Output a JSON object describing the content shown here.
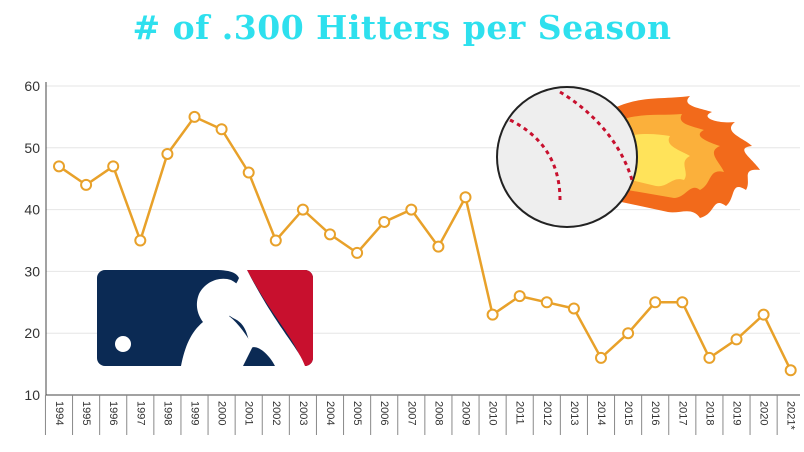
{
  "chart_data": {
    "type": "line",
    "title": "# of .300 Hitters per Season",
    "xlabel": "",
    "ylabel": "",
    "categories": [
      "1994",
      "1995",
      "1996",
      "1997",
      "1998",
      "1999",
      "2000",
      "2001",
      "2002",
      "2003",
      "2004",
      "2005",
      "2006",
      "2007",
      "2008",
      "2009",
      "2010",
      "2011",
      "2012",
      "2013",
      "2014",
      "2015",
      "2016",
      "2017",
      "2018",
      "2019",
      "2020",
      "2021*"
    ],
    "series": [
      {
        "values": [
          47,
          44,
          47,
          35,
          49,
          55,
          53,
          46,
          35,
          40,
          36,
          33,
          38,
          40,
          34,
          42,
          23,
          26,
          25,
          24,
          16,
          20,
          25,
          25,
          16,
          19,
          23,
          14
        ]
      }
    ],
    "ylim": [
      10,
      60
    ],
    "yticks": [
      10,
      20,
      30,
      40,
      50,
      60
    ],
    "grid": true,
    "legend": "none",
    "colors": {
      "line": "#e8a12a",
      "marker_fill": "#ffffff",
      "grid": "#e6e6e6",
      "title": "#2ee0ee"
    },
    "decorations": [
      "mlb-logo-icon",
      "flaming-baseball-icon"
    ]
  }
}
